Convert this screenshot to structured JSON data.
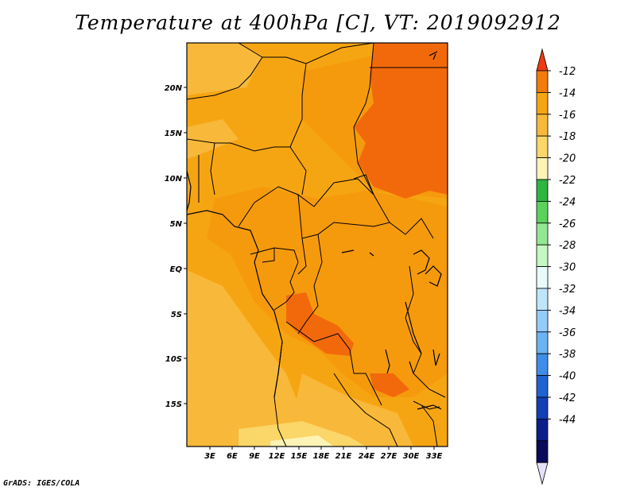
{
  "title": "Temperature at 400hPa [C], VT: 2019092912",
  "credit": "GrADS: IGES/COLA",
  "map": {
    "lat_labels": [
      "20N",
      "15N",
      "10N",
      "5N",
      "EQ",
      "5S",
      "10S",
      "15S"
    ],
    "lon_labels": [
      "3E",
      "6E",
      "9E",
      "12E",
      "15E",
      "18E",
      "21E",
      "24E",
      "27E",
      "30E",
      "33E"
    ],
    "extent": {
      "lon_min": 0,
      "lon_max": 34.5,
      "lat_min": -20,
      "lat_max": 24.5
    }
  },
  "colorbar": {
    "labels": [
      "-12",
      "-14",
      "-16",
      "-18",
      "-20",
      "-22",
      "-24",
      "-26",
      "-28",
      "-30",
      "-32",
      "-34",
      "-36",
      "-38",
      "-40",
      "-42",
      "-44"
    ],
    "colors": [
      "#f03a10",
      "#f27b0a",
      "#f6a512",
      "#f8b83a",
      "#fbd668",
      "#fdf3b4",
      "#2db540",
      "#5cd15c",
      "#92e890",
      "#c3f8c0",
      "#e8fbfb",
      "#bfe5fb",
      "#94ccf8",
      "#6cb3f4",
      "#3f8de8",
      "#1f62d2",
      "#1040b4",
      "#0a1f8a",
      "#0a0a5a",
      "#e6e0f6"
    ]
  }
}
